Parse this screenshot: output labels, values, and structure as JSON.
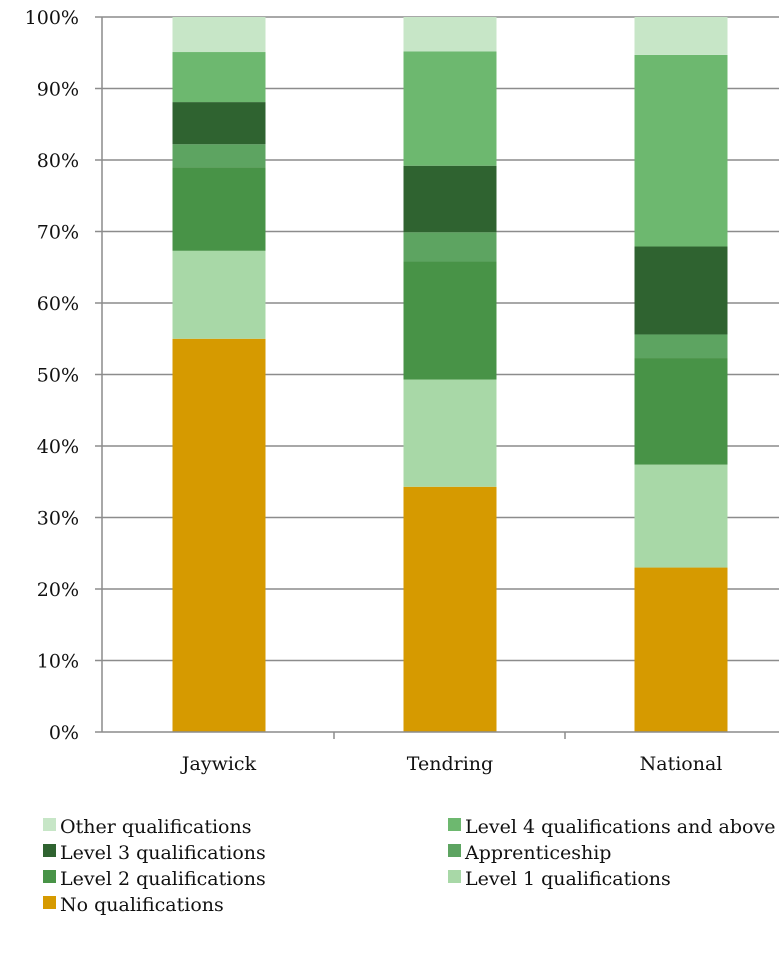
{
  "chart_data": {
    "type": "bar",
    "stacked": true,
    "categories": [
      "Jaywick",
      "Tendring",
      "National"
    ],
    "series": [
      {
        "name": "No qualifications",
        "color": "#d69a00",
        "values": [
          55,
          34.3,
          23
        ]
      },
      {
        "name": "Level 1 qualifications",
        "color": "#a8d8a7",
        "values": [
          12.3,
          15,
          14.4
        ]
      },
      {
        "name": "Level 2 qualifications",
        "color": "#489347",
        "values": [
          11.7,
          16.5,
          14.9
        ]
      },
      {
        "name": "Apprenticeship",
        "color": "#5da461",
        "values": [
          3.2,
          4.1,
          3.3
        ]
      },
      {
        "name": "Level 3 qualifications",
        "color": "#2f6330",
        "values": [
          5.9,
          9.3,
          12.3
        ]
      },
      {
        "name": "Level 4 qualifications and above",
        "color": "#6db86f",
        "values": [
          7,
          16,
          26.8
        ]
      },
      {
        "name": "Other qualifications",
        "color": "#c7e6c7",
        "values": [
          4.9,
          4.8,
          5.3
        ]
      }
    ],
    "y_ticks": [
      "0%",
      "10%",
      "20%",
      "30%",
      "40%",
      "50%",
      "60%",
      "70%",
      "80%",
      "90%",
      "100%"
    ],
    "ylim": [
      0,
      100
    ],
    "grid": true,
    "legend_position": "bottom",
    "legend_order": [
      "Other qualifications",
      "Level 4 qualifications and above",
      "Level 3 qualifications",
      "Apprenticeship",
      "Level 2 qualifications",
      "Level 1 qualifications",
      "No qualifications"
    ]
  }
}
